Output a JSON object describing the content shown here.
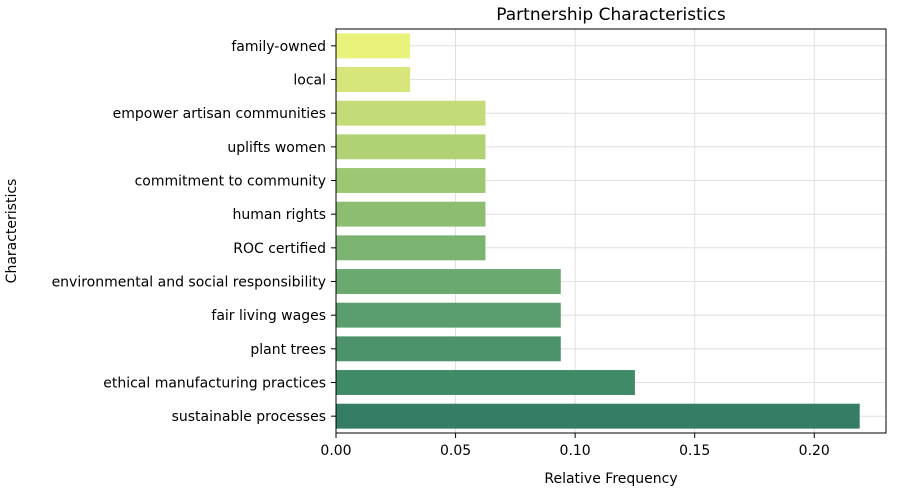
{
  "chart_data": {
    "type": "bar",
    "orientation": "horizontal",
    "title": "Partnership Characteristics",
    "xlabel": "Relative Frequency",
    "ylabel": "Characteristics",
    "xlim": [
      0,
      0.23
    ],
    "xticks": [
      0.0,
      0.05,
      0.1,
      0.15,
      0.2
    ],
    "xtick_labels": [
      "0.00",
      "0.05",
      "0.10",
      "0.15",
      "0.20"
    ],
    "grid": true,
    "categories": [
      "sustainable processes",
      "ethical manufacturing practices",
      "plant trees",
      "fair living wages",
      "environmental and social responsibility",
      "ROC certified",
      "human rights",
      "commitment to community",
      "uplifts women",
      "empower artisan communities",
      "local",
      "family-owned"
    ],
    "values": [
      0.219,
      0.125,
      0.094,
      0.094,
      0.094,
      0.0625,
      0.0625,
      0.0625,
      0.0625,
      0.0625,
      0.031,
      0.031
    ],
    "colors": [
      "#357e65",
      "#3f8a67",
      "#4c936b",
      "#5a9e6d",
      "#6aa96f",
      "#7bb470",
      "#8cbd71",
      "#9dc773",
      "#b0d274",
      "#c3dc77",
      "#d7e57a",
      "#e9f27b"
    ]
  }
}
